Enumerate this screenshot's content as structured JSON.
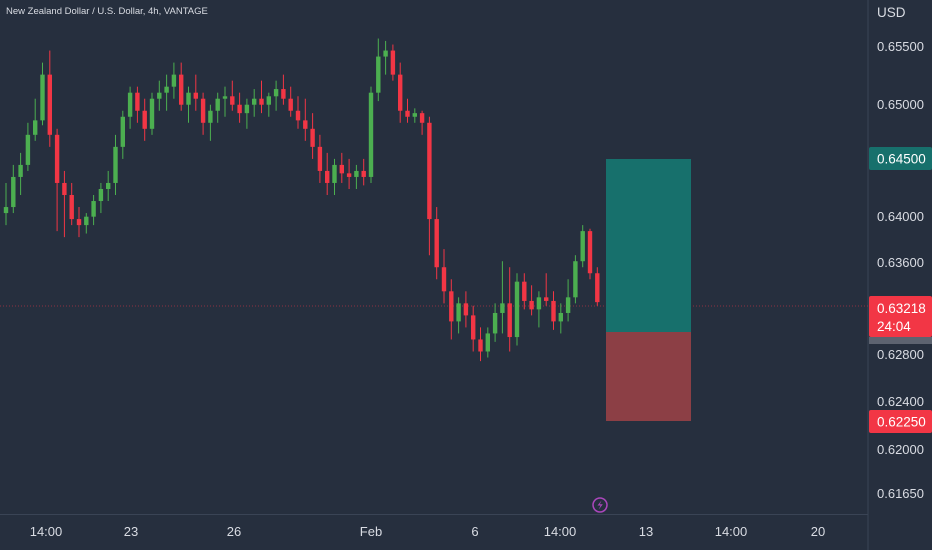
{
  "header": {
    "title": "New Zealand Dollar / U.S. Dollar, 4h, VANTAGE",
    "currency": "USD"
  },
  "price_axis": {
    "labels": [
      "0.65500",
      "0.65000",
      "0.64000",
      "0.63600",
      "0.62800",
      "0.62400",
      "0.62000",
      "0.61650"
    ],
    "tags": {
      "take_profit": "0.64500",
      "current_price": "0.63218",
      "countdown": "24:04",
      "stop_loss": "0.62250"
    }
  },
  "time_axis": {
    "labels": [
      "14:00",
      "23",
      "26",
      "Feb",
      "6",
      "14:00",
      "13",
      "14:00",
      "20"
    ]
  },
  "colors": {
    "background": "#262f3e",
    "up": "#4caf50",
    "down": "#f23645",
    "profit_zone": "#17706c",
    "loss_zone": "#8c3f45"
  },
  "chart_data": {
    "type": "candlestick",
    "title": "New Zealand Dollar / U.S. Dollar, 4h, VANTAGE",
    "y_unit": "USD",
    "ylim": [
      0.6145,
      0.6572
    ],
    "candles": [
      [
        0.6395,
        0.642,
        0.6385,
        0.64
      ],
      [
        0.64,
        0.6435,
        0.6395,
        0.6425
      ],
      [
        0.6425,
        0.6445,
        0.641,
        0.6435
      ],
      [
        0.6435,
        0.647,
        0.643,
        0.646
      ],
      [
        0.646,
        0.649,
        0.6455,
        0.6472
      ],
      [
        0.6472,
        0.652,
        0.6468,
        0.651
      ],
      [
        0.651,
        0.653,
        0.645,
        0.646
      ],
      [
        0.646,
        0.6465,
        0.638,
        0.642
      ],
      [
        0.642,
        0.643,
        0.6375,
        0.641
      ],
      [
        0.641,
        0.642,
        0.6385,
        0.639
      ],
      [
        0.639,
        0.64,
        0.6375,
        0.6385
      ],
      [
        0.6385,
        0.6395,
        0.6378,
        0.6392
      ],
      [
        0.6392,
        0.641,
        0.6385,
        0.6405
      ],
      [
        0.6405,
        0.642,
        0.6395,
        0.6415
      ],
      [
        0.6415,
        0.643,
        0.6405,
        0.642
      ],
      [
        0.642,
        0.646,
        0.641,
        0.645
      ],
      [
        0.645,
        0.648,
        0.644,
        0.6475
      ],
      [
        0.6475,
        0.65,
        0.6465,
        0.6495
      ],
      [
        0.6495,
        0.65,
        0.647,
        0.648
      ],
      [
        0.648,
        0.649,
        0.6455,
        0.6465
      ],
      [
        0.6465,
        0.6495,
        0.646,
        0.649
      ],
      [
        0.649,
        0.6505,
        0.648,
        0.6495
      ],
      [
        0.6495,
        0.651,
        0.648,
        0.65
      ],
      [
        0.65,
        0.652,
        0.649,
        0.651
      ],
      [
        0.651,
        0.652,
        0.648,
        0.6485
      ],
      [
        0.6485,
        0.65,
        0.647,
        0.6495
      ],
      [
        0.6495,
        0.651,
        0.648,
        0.649
      ],
      [
        0.649,
        0.6495,
        0.646,
        0.647
      ],
      [
        0.647,
        0.6485,
        0.6455,
        0.648
      ],
      [
        0.648,
        0.6495,
        0.647,
        0.649
      ],
      [
        0.649,
        0.65,
        0.6475,
        0.6492
      ],
      [
        0.6492,
        0.6505,
        0.648,
        0.6485
      ],
      [
        0.6485,
        0.6495,
        0.647,
        0.6478
      ],
      [
        0.6478,
        0.649,
        0.6465,
        0.6485
      ],
      [
        0.6485,
        0.6498,
        0.6475,
        0.649
      ],
      [
        0.649,
        0.6505,
        0.6478,
        0.6485
      ],
      [
        0.6485,
        0.6495,
        0.6475,
        0.6492
      ],
      [
        0.6492,
        0.6505,
        0.648,
        0.6498
      ],
      [
        0.6498,
        0.651,
        0.6485,
        0.649
      ],
      [
        0.649,
        0.65,
        0.6475,
        0.648
      ],
      [
        0.648,
        0.6492,
        0.6465,
        0.6472
      ],
      [
        0.6472,
        0.649,
        0.6455,
        0.6465
      ],
      [
        0.6465,
        0.6478,
        0.644,
        0.645
      ],
      [
        0.645,
        0.646,
        0.642,
        0.643
      ],
      [
        0.643,
        0.6445,
        0.641,
        0.642
      ],
      [
        0.642,
        0.644,
        0.641,
        0.6435
      ],
      [
        0.6435,
        0.6445,
        0.642,
        0.6428
      ],
      [
        0.6428,
        0.644,
        0.6415,
        0.6425
      ],
      [
        0.6425,
        0.6435,
        0.6415,
        0.643
      ],
      [
        0.643,
        0.644,
        0.6418,
        0.6425
      ],
      [
        0.6425,
        0.65,
        0.642,
        0.6495
      ],
      [
        0.6495,
        0.654,
        0.6488,
        0.6525
      ],
      [
        0.6525,
        0.6538,
        0.651,
        0.653
      ],
      [
        0.653,
        0.6535,
        0.6505,
        0.651
      ],
      [
        0.651,
        0.652,
        0.647,
        0.648
      ],
      [
        0.648,
        0.649,
        0.647,
        0.6475
      ],
      [
        0.6475,
        0.6482,
        0.647,
        0.6478
      ],
      [
        0.6478,
        0.648,
        0.646,
        0.647
      ],
      [
        0.647,
        0.6475,
        0.636,
        0.639
      ],
      [
        0.639,
        0.64,
        0.634,
        0.635
      ],
      [
        0.635,
        0.6365,
        0.632,
        0.633
      ],
      [
        0.633,
        0.634,
        0.629,
        0.6305
      ],
      [
        0.6305,
        0.6325,
        0.6295,
        0.632
      ],
      [
        0.632,
        0.633,
        0.63,
        0.631
      ],
      [
        0.631,
        0.6318,
        0.628,
        0.629
      ],
      [
        0.629,
        0.63,
        0.6272,
        0.628
      ],
      [
        0.628,
        0.63,
        0.6275,
        0.6295
      ],
      [
        0.6295,
        0.632,
        0.6288,
        0.6312
      ],
      [
        0.6312,
        0.6355,
        0.6295,
        0.632
      ],
      [
        0.632,
        0.635,
        0.628,
        0.6292
      ],
      [
        0.6292,
        0.6345,
        0.6285,
        0.6338
      ],
      [
        0.6338,
        0.6345,
        0.6315,
        0.6322
      ],
      [
        0.6322,
        0.6335,
        0.631,
        0.6315
      ],
      [
        0.6315,
        0.633,
        0.63,
        0.6325
      ],
      [
        0.6325,
        0.6345,
        0.6318,
        0.6322
      ],
      [
        0.6322,
        0.633,
        0.6298,
        0.6305
      ],
      [
        0.6305,
        0.632,
        0.6295,
        0.6312
      ],
      [
        0.6312,
        0.634,
        0.6305,
        0.6325
      ],
      [
        0.6325,
        0.636,
        0.632,
        0.6355
      ],
      [
        0.6355,
        0.6385,
        0.635,
        0.638
      ],
      [
        0.638,
        0.6382,
        0.634,
        0.6345
      ],
      [
        0.6345,
        0.635,
        0.6318,
        0.6321
      ]
    ],
    "position": {
      "type": "long",
      "entry": 0.6308,
      "take_profit": 0.645,
      "stop_loss": 0.6225,
      "last_price": 0.63218
    },
    "y_tick_labels": [
      "0.65500",
      "0.65000",
      "0.64000",
      "0.63600",
      "0.62800",
      "0.62400",
      "0.62000",
      "0.61650"
    ],
    "x_tick_labels": [
      "14:00",
      "23",
      "26",
      "Feb",
      "6",
      "14:00",
      "13",
      "14:00",
      "20"
    ]
  }
}
